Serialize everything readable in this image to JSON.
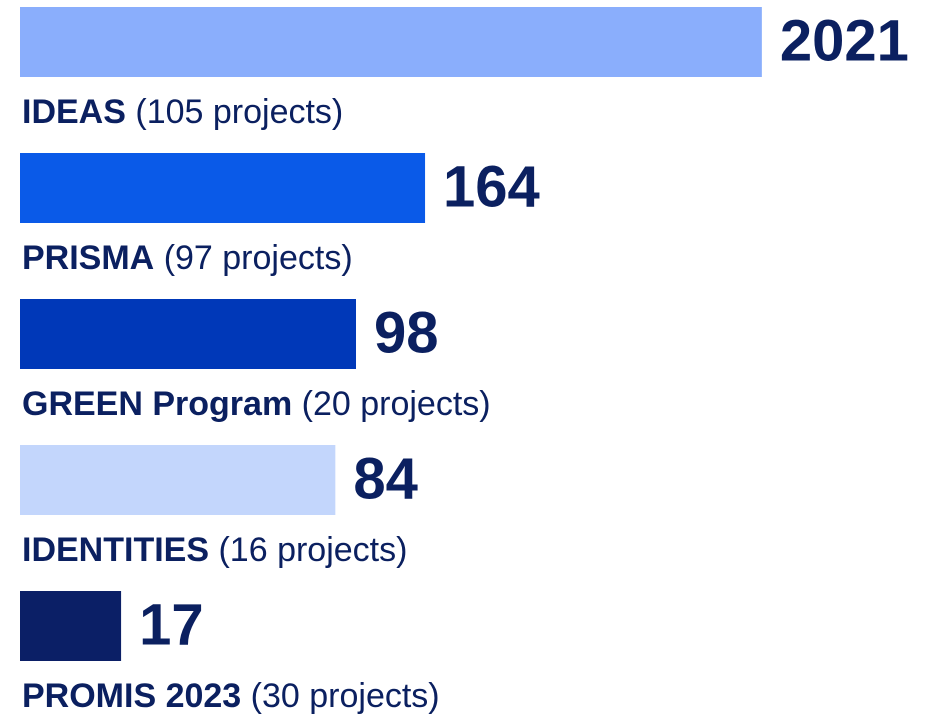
{
  "chart_data": {
    "type": "hbar",
    "categories": [
      "IDEAS",
      "PRISMA",
      "GREEN Program",
      "IDENTITIES",
      "PROMIS 2023"
    ],
    "details": [
      "(105 projects)",
      "(97 projects)",
      "(20 projects)",
      "(16 projects)",
      "(30 projects)"
    ],
    "values": [
      2021,
      164,
      98,
      84,
      17
    ],
    "colors": [
      "#8aaefc",
      "#0a5ae8",
      "#0038b8",
      "#c3d6fc",
      "#0b1f66"
    ],
    "xscale": "log",
    "xlim": [
      8,
      2100
    ]
  }
}
